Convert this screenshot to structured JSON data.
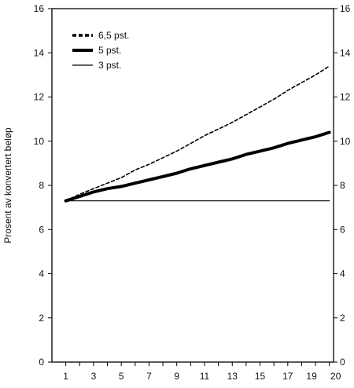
{
  "chart_data": {
    "type": "line",
    "title": "",
    "xlabel": "",
    "ylabel": "Prosent av konvertert beløp",
    "x": [
      1,
      2,
      3,
      4,
      5,
      6,
      7,
      8,
      9,
      10,
      11,
      12,
      13,
      14,
      15,
      16,
      17,
      18,
      19,
      20
    ],
    "x_tick_labels": [
      "1",
      "3",
      "5",
      "7",
      "9",
      "11",
      "13",
      "15",
      "17",
      "19",
      "20"
    ],
    "y_tick_labels": [
      "0",
      "2",
      "4",
      "6",
      "8",
      "10",
      "12",
      "14",
      "16"
    ],
    "ylim": [
      0,
      16
    ],
    "xlim": [
      0,
      20.3
    ],
    "grid": false,
    "legend_position": "top-left",
    "series": [
      {
        "name": "6,5 pst.",
        "style": "dashed",
        "color": "#000000",
        "values": [
          7.3,
          7.6,
          7.85,
          8.1,
          8.35,
          8.7,
          8.95,
          9.25,
          9.55,
          9.9,
          10.25,
          10.55,
          10.85,
          11.2,
          11.55,
          11.9,
          12.3,
          12.65,
          13.0,
          13.4
        ]
      },
      {
        "name": "5 pst.",
        "style": "thick",
        "color": "#000000",
        "values": [
          7.3,
          7.5,
          7.7,
          7.85,
          7.95,
          8.1,
          8.25,
          8.4,
          8.55,
          8.75,
          8.9,
          9.05,
          9.2,
          9.4,
          9.55,
          9.7,
          9.9,
          10.05,
          10.2,
          10.4
        ]
      },
      {
        "name": "3 pst.",
        "style": "thin",
        "color": "#000000",
        "values": [
          7.3,
          7.3,
          7.3,
          7.3,
          7.3,
          7.3,
          7.3,
          7.3,
          7.3,
          7.3,
          7.3,
          7.3,
          7.3,
          7.3,
          7.3,
          7.3,
          7.3,
          7.3,
          7.3,
          7.3
        ]
      }
    ]
  }
}
